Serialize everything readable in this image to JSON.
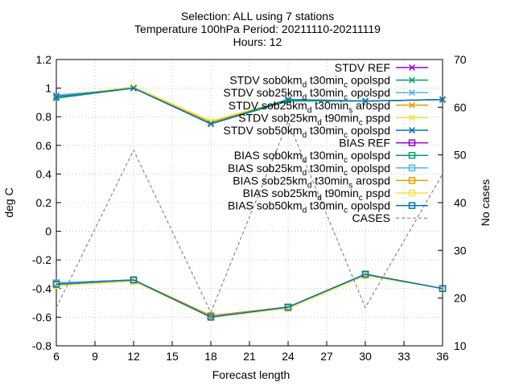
{
  "title": {
    "line1": "Selection: ALL using     7 stations",
    "line2": "Temperature 100hPa    Period: 20211110-20211119",
    "line3": "Hours: 12"
  },
  "chart_data": {
    "type": "line",
    "xlabel": "Forecast length",
    "ylabel": "deg C",
    "y2label": "No cases",
    "x": [
      6,
      12,
      18,
      24,
      30,
      36
    ],
    "xticks": [
      6,
      9,
      12,
      15,
      18,
      21,
      24,
      27,
      30,
      33,
      36
    ],
    "xlim": [
      6,
      36
    ],
    "ylim": [
      -0.8,
      1.2
    ],
    "yticks": [
      -0.8,
      -0.6,
      -0.4,
      -0.2,
      0,
      0.2,
      0.4,
      0.6,
      0.8,
      1,
      1.2
    ],
    "ytick_labels": [
      "-0.8",
      "-0.6",
      "-0.4",
      "-0.2",
      "0",
      "0.2",
      "0.4",
      "0.6",
      "0.8",
      "1",
      "1.2"
    ],
    "y2lim": [
      10,
      70
    ],
    "y2ticks": [
      10,
      20,
      30,
      40,
      50,
      60,
      70
    ],
    "grid": true,
    "legend_position": "top-right",
    "series": [
      {
        "name": "STDV REF",
        "axis": "y",
        "color": "#9400d3",
        "marker": "x",
        "values": [
          0.95,
          1.0,
          0.76,
          0.92,
          0.91,
          0.92
        ]
      },
      {
        "name": "STDV sob0km_d t30min_c opolspd",
        "axis": "y",
        "color": "#009e73",
        "marker": "x",
        "values": [
          0.93,
          1.0,
          0.75,
          0.91,
          0.91,
          0.92
        ]
      },
      {
        "name": "STDV sob25km_d t30min_c opolspd",
        "axis": "y",
        "color": "#56b4e9",
        "marker": "x",
        "values": [
          0.95,
          1.0,
          0.76,
          0.92,
          0.91,
          0.92
        ]
      },
      {
        "name": "STDV sob25km_d t30min_s arospd",
        "axis": "y",
        "color": "#e69f00",
        "marker": "x",
        "values": [
          0.94,
          1.0,
          0.76,
          0.92,
          0.91,
          0.92
        ]
      },
      {
        "name": "STDV sob25km_d t90min_c pspd",
        "axis": "y",
        "color": "#f0e442",
        "marker": "x",
        "values": [
          0.94,
          1.01,
          0.77,
          0.92,
          0.91,
          0.92
        ]
      },
      {
        "name": "STDV sob50km_d t30min_c opolspd",
        "axis": "y",
        "color": "#0072b2",
        "marker": "x",
        "values": [
          0.94,
          1.0,
          0.75,
          0.92,
          0.91,
          0.92
        ]
      },
      {
        "name": "BIAS REF",
        "axis": "y",
        "color": "#9400d3",
        "marker": "square",
        "values": [
          -0.36,
          -0.34,
          -0.59,
          -0.53,
          -0.3,
          -0.4
        ]
      },
      {
        "name": "BIAS sob0km_d t30min_c opolspd",
        "axis": "y",
        "color": "#009e73",
        "marker": "square",
        "values": [
          -0.37,
          -0.34,
          -0.59,
          -0.53,
          -0.3,
          -0.4
        ]
      },
      {
        "name": "BIAS sob25km_d t30min_c opolspd",
        "axis": "y",
        "color": "#56b4e9",
        "marker": "square",
        "values": [
          -0.36,
          -0.34,
          -0.59,
          -0.53,
          -0.3,
          -0.4
        ]
      },
      {
        "name": "BIAS sob25km_d t30min_s arospd",
        "axis": "y",
        "color": "#e69f00",
        "marker": "square",
        "values": [
          -0.37,
          -0.34,
          -0.59,
          -0.53,
          -0.3,
          -0.4
        ]
      },
      {
        "name": "BIAS sob25km_d t90min_c pspd",
        "axis": "y",
        "color": "#f0e442",
        "marker": "square",
        "values": [
          -0.38,
          -0.35,
          -0.6,
          -0.54,
          -0.31,
          -0.4
        ]
      },
      {
        "name": "BIAS sob50km_d t30min_c opolspd",
        "axis": "y",
        "color": "#0072b2",
        "marker": "square",
        "values": [
          -0.37,
          -0.34,
          -0.6,
          -0.53,
          -0.3,
          -0.4
        ]
      },
      {
        "name": "CASES",
        "axis": "y2",
        "color": "#888888",
        "marker": "none",
        "dashed": true,
        "values": [
          18,
          51,
          17,
          57,
          18,
          46
        ]
      }
    ]
  }
}
